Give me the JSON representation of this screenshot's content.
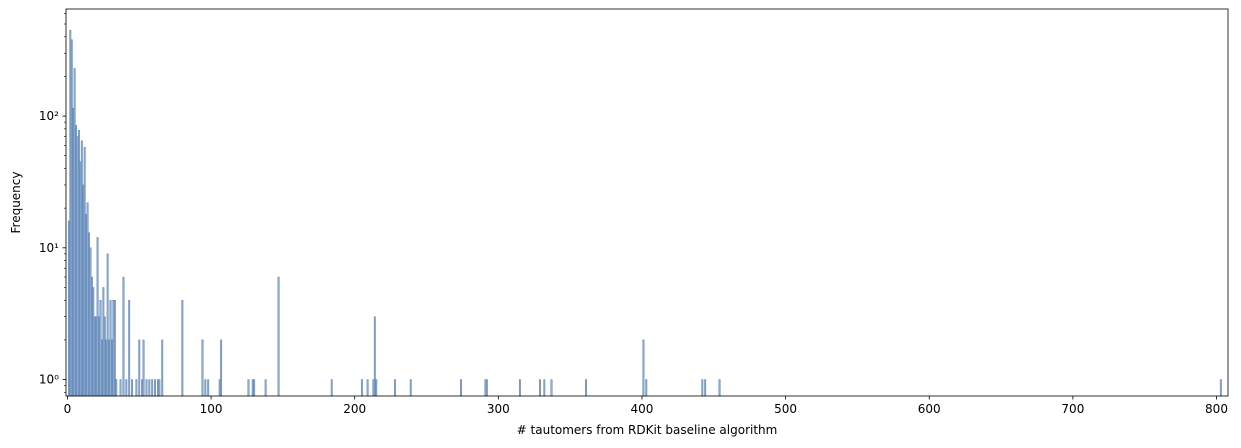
{
  "chart_data": {
    "type": "bar",
    "title": "",
    "xlabel": "# tautomers from RDKit baseline algorithm",
    "ylabel": "Frequency",
    "xlim": [
      -1,
      808
    ],
    "ylim": [
      0.75,
      650
    ],
    "yscale": "log",
    "grid": false,
    "bar_color": "#7aa0c4",
    "bar_edge_color": "#4c72b0",
    "x_ticks": [
      0,
      100,
      200,
      300,
      400,
      500,
      600,
      700,
      800
    ],
    "x_tick_labels": [
      "0",
      "100",
      "200",
      "300",
      "400",
      "500",
      "600",
      "700",
      "800"
    ],
    "y_ticks": [
      1,
      10,
      100
    ],
    "y_tick_labels": [
      "10⁰",
      "10¹",
      "10²"
    ],
    "bin_width": 1,
    "bins": [
      {
        "x": 1,
        "count": 16
      },
      {
        "x": 2,
        "count": 450
      },
      {
        "x": 3,
        "count": 380
      },
      {
        "x": 4,
        "count": 115
      },
      {
        "x": 5,
        "count": 230
      },
      {
        "x": 6,
        "count": 85
      },
      {
        "x": 7,
        "count": 70
      },
      {
        "x": 8,
        "count": 78
      },
      {
        "x": 9,
        "count": 45
      },
      {
        "x": 10,
        "count": 65
      },
      {
        "x": 11,
        "count": 30
      },
      {
        "x": 12,
        "count": 58
      },
      {
        "x": 13,
        "count": 18
      },
      {
        "x": 14,
        "count": 22
      },
      {
        "x": 15,
        "count": 13
      },
      {
        "x": 16,
        "count": 10
      },
      {
        "x": 17,
        "count": 6
      },
      {
        "x": 18,
        "count": 5
      },
      {
        "x": 19,
        "count": 3
      },
      {
        "x": 20,
        "count": 3
      },
      {
        "x": 21,
        "count": 12
      },
      {
        "x": 22,
        "count": 3
      },
      {
        "x": 23,
        "count": 4
      },
      {
        "x": 24,
        "count": 2
      },
      {
        "x": 25,
        "count": 5
      },
      {
        "x": 26,
        "count": 3
      },
      {
        "x": 27,
        "count": 2
      },
      {
        "x": 28,
        "count": 9
      },
      {
        "x": 29,
        "count": 2
      },
      {
        "x": 30,
        "count": 4
      },
      {
        "x": 31,
        "count": 2
      },
      {
        "x": 32,
        "count": 4
      },
      {
        "x": 33,
        "count": 4
      },
      {
        "x": 34,
        "count": 1
      },
      {
        "x": 37,
        "count": 1
      },
      {
        "x": 39,
        "count": 6
      },
      {
        "x": 41,
        "count": 1
      },
      {
        "x": 43,
        "count": 4
      },
      {
        "x": 45,
        "count": 1
      },
      {
        "x": 48,
        "count": 1
      },
      {
        "x": 50,
        "count": 2
      },
      {
        "x": 52,
        "count": 1
      },
      {
        "x": 53,
        "count": 2
      },
      {
        "x": 55,
        "count": 1
      },
      {
        "x": 57,
        "count": 1
      },
      {
        "x": 59,
        "count": 1
      },
      {
        "x": 61,
        "count": 1
      },
      {
        "x": 63,
        "count": 1
      },
      {
        "x": 64,
        "count": 1
      },
      {
        "x": 66,
        "count": 2
      },
      {
        "x": 80,
        "count": 4
      },
      {
        "x": 94,
        "count": 2
      },
      {
        "x": 96,
        "count": 1
      },
      {
        "x": 98,
        "count": 1
      },
      {
        "x": 106,
        "count": 1
      },
      {
        "x": 107,
        "count": 2
      },
      {
        "x": 126,
        "count": 1
      },
      {
        "x": 129,
        "count": 1
      },
      {
        "x": 130,
        "count": 1
      },
      {
        "x": 138,
        "count": 1
      },
      {
        "x": 147,
        "count": 6
      },
      {
        "x": 184,
        "count": 1
      },
      {
        "x": 205,
        "count": 1
      },
      {
        "x": 209,
        "count": 1
      },
      {
        "x": 213,
        "count": 1
      },
      {
        "x": 214,
        "count": 3
      },
      {
        "x": 215,
        "count": 1
      },
      {
        "x": 228,
        "count": 1
      },
      {
        "x": 239,
        "count": 1
      },
      {
        "x": 274,
        "count": 1
      },
      {
        "x": 291,
        "count": 1
      },
      {
        "x": 292,
        "count": 1
      },
      {
        "x": 315,
        "count": 1
      },
      {
        "x": 329,
        "count": 1
      },
      {
        "x": 332,
        "count": 1
      },
      {
        "x": 337,
        "count": 1
      },
      {
        "x": 361,
        "count": 1
      },
      {
        "x": 401,
        "count": 2
      },
      {
        "x": 403,
        "count": 1
      },
      {
        "x": 442,
        "count": 1
      },
      {
        "x": 444,
        "count": 1
      },
      {
        "x": 454,
        "count": 1
      },
      {
        "x": 803,
        "count": 1
      }
    ]
  }
}
